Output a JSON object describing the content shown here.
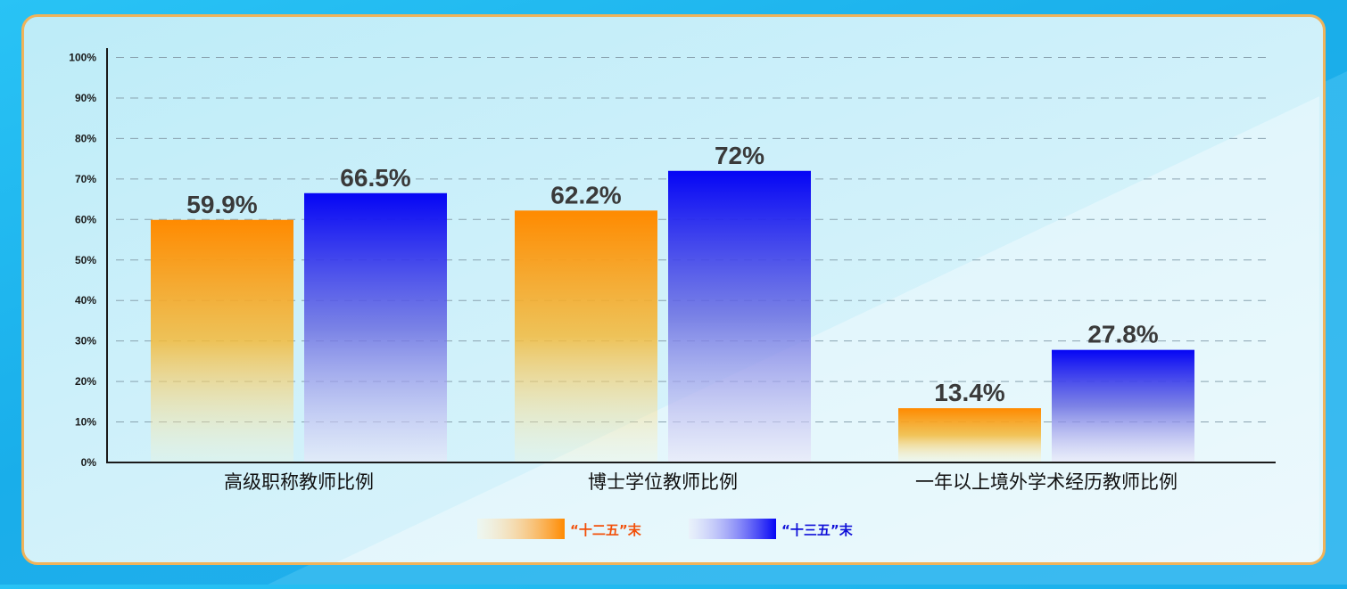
{
  "chart_data": {
    "type": "bar",
    "categories": [
      "高级职称教师比例",
      "博士学位教师比例",
      "一年以上境外学术经历教师比例"
    ],
    "series": [
      {
        "name": "“十二五”末",
        "values": [
          59.9,
          62.2,
          13.4
        ],
        "labels": [
          "59.9%",
          "62.2%",
          "13.4%"
        ],
        "color": "#ff8a00",
        "legend_color": "#f2500a"
      },
      {
        "name": "“十三五”末",
        "values": [
          66.5,
          72,
          27.8
        ],
        "labels": [
          "66.5%",
          "72%",
          "27.8%"
        ],
        "color": "#0a0af5",
        "legend_color": "#1010d8"
      }
    ],
    "y_ticks": [
      "0%",
      "10%",
      "20%",
      "30%",
      "40%",
      "50%",
      "60%",
      "70%",
      "80%",
      "90%",
      "100%"
    ],
    "ylim": [
      0,
      100
    ],
    "grid": "dashed horizontal",
    "legend_position": "bottom-center"
  }
}
